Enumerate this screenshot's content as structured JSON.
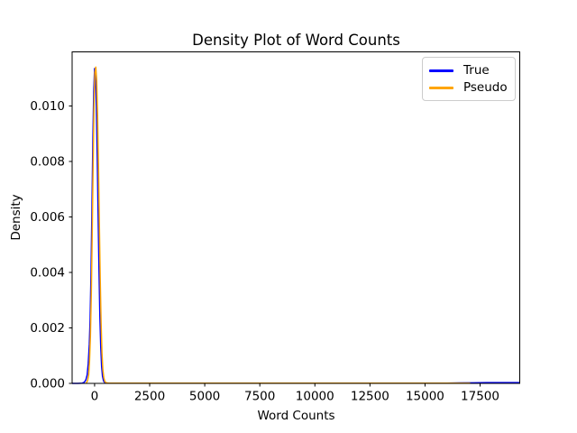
{
  "chart_data": {
    "type": "line",
    "title": "Density Plot of Word Counts",
    "xlabel": "Word Counts",
    "ylabel": "Density",
    "xlim": [
      -1020,
      19300
    ],
    "ylim": [
      0,
      0.01195
    ],
    "grid": false,
    "x_ticks": [
      0,
      2500,
      5000,
      7500,
      10000,
      12500,
      15000,
      17500
    ],
    "x_tick_labels": [
      "0",
      "2500",
      "5000",
      "7500",
      "10000",
      "12500",
      "15000",
      "17500"
    ],
    "y_ticks": [
      0,
      0.002,
      0.004,
      0.006,
      0.008,
      0.01
    ],
    "y_tick_labels": [
      "0.000",
      "0.002",
      "0.004",
      "0.006",
      "0.008",
      "0.010"
    ],
    "legend": {
      "position": "upper right",
      "entries": [
        {
          "label": "True",
          "color": "#0000ff"
        },
        {
          "label": "Pseudo",
          "color": "#ffa500"
        }
      ]
    },
    "series": [
      {
        "name": "True",
        "color": "#0000ff",
        "peak": {
          "x": 0,
          "y": 0.01135
        },
        "points": [
          [
            -1020,
            0
          ],
          [
            -760,
            0
          ],
          [
            -560,
            1e-05
          ],
          [
            -470,
            4e-05
          ],
          [
            -400,
            0.00012
          ],
          [
            -340,
            0.0003
          ],
          [
            -290,
            0.0007
          ],
          [
            -240,
            0.0014
          ],
          [
            -200,
            0.0024
          ],
          [
            -160,
            0.0041
          ],
          [
            -120,
            0.0063
          ],
          [
            -80,
            0.0087
          ],
          [
            -40,
            0.0105
          ],
          [
            0,
            0.01135
          ],
          [
            40,
            0.0111
          ],
          [
            80,
            0.01
          ],
          [
            120,
            0.0082
          ],
          [
            160,
            0.0061
          ],
          [
            200,
            0.0041
          ],
          [
            240,
            0.0024
          ],
          [
            280,
            0.0013
          ],
          [
            320,
            0.0006
          ],
          [
            360,
            0.00025
          ],
          [
            410,
            8e-05
          ],
          [
            470,
            2e-05
          ],
          [
            560,
            1e-05
          ],
          [
            800,
            1e-05
          ],
          [
            1500,
            1e-05
          ],
          [
            3000,
            1e-05
          ],
          [
            5000,
            1e-05
          ],
          [
            8000,
            1e-05
          ],
          [
            11000,
            1e-05
          ],
          [
            14000,
            1e-05
          ],
          [
            16000,
            1e-05
          ],
          [
            17200,
            2e-05
          ],
          [
            17800,
            3e-05
          ],
          [
            18500,
            3e-05
          ],
          [
            19300,
            3e-05
          ]
        ]
      },
      {
        "name": "Pseudo",
        "color": "#ffa500",
        "peak": {
          "x": 55,
          "y": 0.0114
        },
        "points": [
          [
            -380,
            0
          ],
          [
            -320,
            0.0001
          ],
          [
            -270,
            0.0003
          ],
          [
            -230,
            0.0008
          ],
          [
            -190,
            0.0017
          ],
          [
            -150,
            0.0032
          ],
          [
            -110,
            0.0053
          ],
          [
            -70,
            0.0077
          ],
          [
            -30,
            0.0099
          ],
          [
            10,
            0.0112
          ],
          [
            55,
            0.0114
          ],
          [
            95,
            0.0109
          ],
          [
            135,
            0.0097
          ],
          [
            175,
            0.0079
          ],
          [
            215,
            0.0058
          ],
          [
            255,
            0.0038
          ],
          [
            295,
            0.0022
          ],
          [
            335,
            0.0011
          ],
          [
            375,
            0.0005
          ],
          [
            420,
            0.0002
          ],
          [
            470,
            6e-05
          ],
          [
            540,
            2e-05
          ],
          [
            650,
            1e-05
          ],
          [
            1200,
            1e-05
          ],
          [
            2500,
            1e-05
          ],
          [
            4500,
            1e-05
          ],
          [
            7000,
            1e-05
          ],
          [
            9500,
            1e-05
          ],
          [
            12000,
            1e-05
          ],
          [
            14500,
            1e-05
          ],
          [
            16000,
            1e-05
          ],
          [
            17050,
            1e-05
          ]
        ]
      }
    ],
    "axes_color": "#000000",
    "background_color": "#ffffff"
  }
}
